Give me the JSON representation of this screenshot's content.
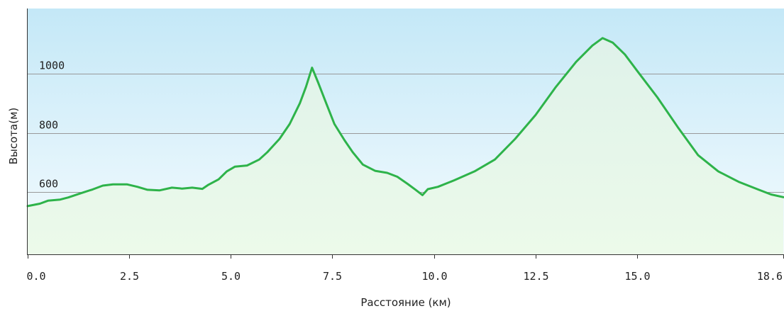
{
  "chart_data": {
    "type": "area",
    "xlabel": "Расстояние (км)",
    "ylabel": "Высота(м)",
    "x_ticks": [
      "0.0",
      "2.5",
      "5.0",
      "7.5",
      "10.0",
      "12.5",
      "15.0",
      "18.6"
    ],
    "y_ticks": [
      "600",
      "800",
      "1000"
    ],
    "xlim": [
      0,
      18.6
    ],
    "ylim": [
      390,
      1220
    ],
    "grid": true,
    "colors": {
      "line": "#2eb34a",
      "fill_top": "#dff2ea",
      "fill_bottom": "#ecfaea",
      "bg_top": "#c4e8f7",
      "bg_bottom": "#f4fbfe",
      "grid": "#999999"
    },
    "series": [
      {
        "points": [
          [
            0.0,
            553
          ],
          [
            0.3,
            561
          ],
          [
            0.5,
            571
          ],
          [
            0.8,
            575
          ],
          [
            1.0,
            582
          ],
          [
            1.3,
            596
          ],
          [
            1.6,
            609
          ],
          [
            1.85,
            622
          ],
          [
            2.1,
            626
          ],
          [
            2.45,
            626
          ],
          [
            2.7,
            618
          ],
          [
            2.95,
            608
          ],
          [
            3.25,
            606
          ],
          [
            3.55,
            615
          ],
          [
            3.8,
            612
          ],
          [
            4.05,
            615
          ],
          [
            4.3,
            611
          ],
          [
            4.45,
            625
          ],
          [
            4.7,
            643
          ],
          [
            4.9,
            670
          ],
          [
            5.1,
            686
          ],
          [
            5.4,
            690
          ],
          [
            5.7,
            710
          ],
          [
            5.9,
            735
          ],
          [
            6.2,
            780
          ],
          [
            6.45,
            830
          ],
          [
            6.7,
            900
          ],
          [
            6.85,
            955
          ],
          [
            7.0,
            1020
          ],
          [
            7.15,
            970
          ],
          [
            7.35,
            900
          ],
          [
            7.55,
            830
          ],
          [
            7.8,
            775
          ],
          [
            8.0,
            735
          ],
          [
            8.25,
            693
          ],
          [
            8.55,
            672
          ],
          [
            8.85,
            665
          ],
          [
            9.1,
            652
          ],
          [
            9.35,
            628
          ],
          [
            9.55,
            608
          ],
          [
            9.72,
            590
          ],
          [
            9.85,
            610
          ],
          [
            10.1,
            618
          ],
          [
            10.5,
            640
          ],
          [
            11.0,
            670
          ],
          [
            11.5,
            710
          ],
          [
            12.0,
            780
          ],
          [
            12.5,
            860
          ],
          [
            13.0,
            955
          ],
          [
            13.5,
            1040
          ],
          [
            13.9,
            1095
          ],
          [
            14.15,
            1120
          ],
          [
            14.4,
            1105
          ],
          [
            14.7,
            1065
          ],
          [
            15.0,
            1010
          ],
          [
            15.5,
            920
          ],
          [
            16.0,
            820
          ],
          [
            16.5,
            725
          ],
          [
            17.0,
            670
          ],
          [
            17.5,
            635
          ],
          [
            18.0,
            608
          ],
          [
            18.3,
            592
          ],
          [
            18.6,
            583
          ]
        ]
      }
    ]
  }
}
